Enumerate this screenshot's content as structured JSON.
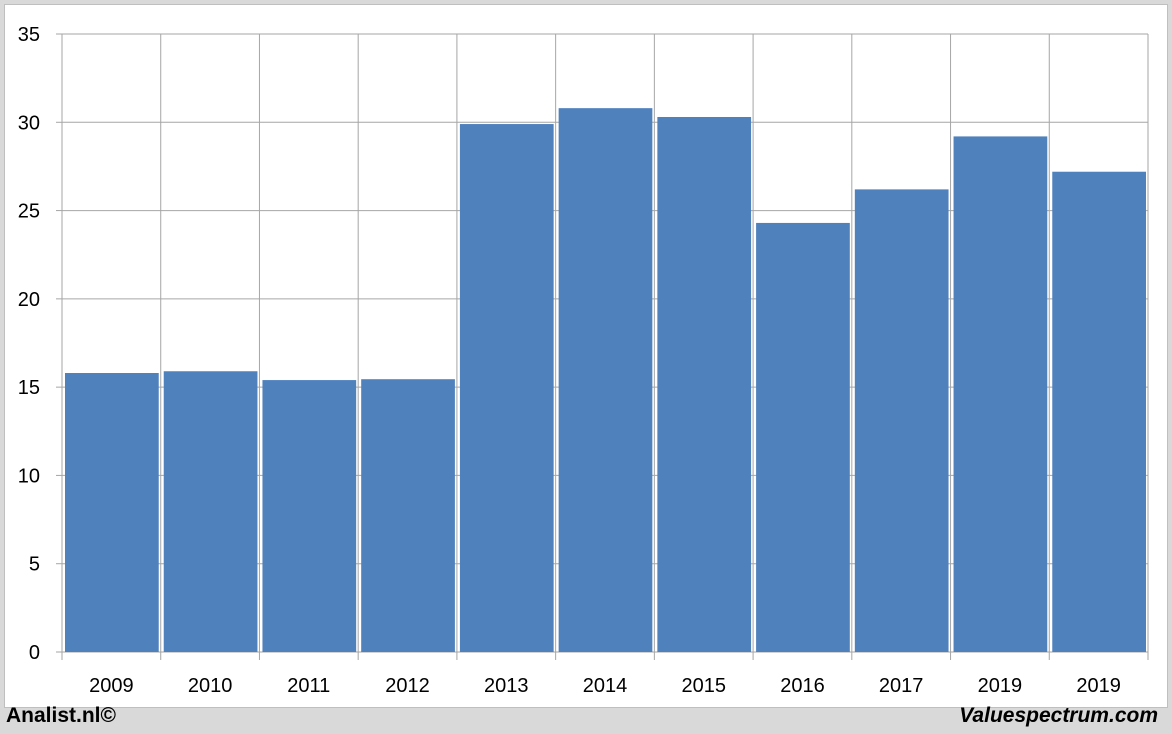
{
  "footer": {
    "left_text": "Analist.nl©",
    "right_text": "Valuespectrum.com"
  },
  "colors": {
    "bar": "#4f81bd",
    "grid": "#a6a6a6",
    "background": "#ffffff",
    "outer": "#d9d9d9"
  },
  "chart_data": {
    "type": "bar",
    "title": "",
    "xlabel": "",
    "ylabel": "",
    "categories": [
      "2009",
      "2010",
      "2011",
      "2012",
      "2013",
      "2014",
      "2015",
      "2016",
      "2017",
      "2019",
      "2019"
    ],
    "values": [
      15.8,
      15.9,
      15.4,
      15.45,
      29.9,
      30.8,
      30.3,
      24.3,
      26.2,
      29.2,
      27.2
    ],
    "ylim": [
      0,
      35
    ],
    "yticks": [
      0,
      5,
      10,
      15,
      20,
      25,
      30,
      35
    ],
    "grid": true,
    "legend": "none"
  }
}
